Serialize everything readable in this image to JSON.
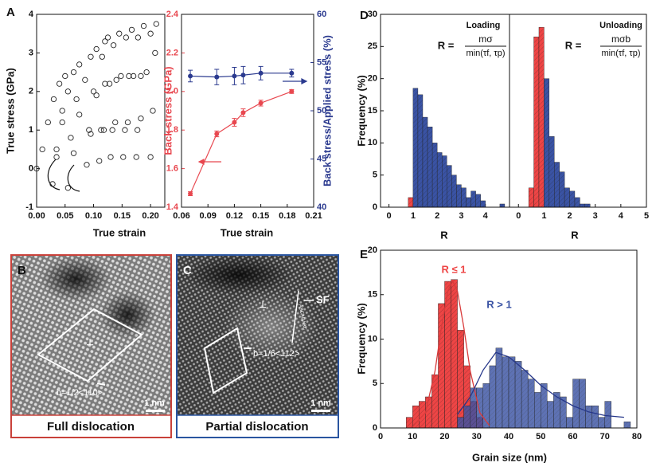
{
  "panel_labels": [
    "A",
    "B",
    "C",
    "D",
    "E"
  ],
  "micrographs": [
    {
      "dislocation_symbol": "⊥",
      "burgers_vector": "b=1/2<110>",
      "scale_bar": "1 nm",
      "caption": "Full dislocation"
    },
    {
      "dislocation_symbol": "⊥",
      "burgers_vector": "b=1/6<112>",
      "scale_bar": "1 nm",
      "caption": "Partial dislocation",
      "stacking_sequence": "ABCABABC",
      "fault_label": "SF"
    }
  ],
  "chart_data": [
    {
      "type": "scatter",
      "x_label": "True strain",
      "y_label": "True stress (GPa)",
      "xlim": [
        0,
        0.225
      ],
      "xticks": [
        {
          "value": 0,
          "label": "0.00"
        },
        0.05,
        {
          "value": 0.1,
          "label": "0.10"
        },
        0.15,
        {
          "value": 0.2,
          "label": "0.20"
        }
      ],
      "ylim": [
        -1,
        4
      ],
      "yticks": [
        -1,
        0,
        1,
        2,
        3,
        4
      ],
      "series": [
        {
          "color": "#222222",
          "x": [
            0,
            0.01,
            0.02,
            0.03,
            0.04,
            0.05,
            0.045,
            0.035,
            0.028,
            0.035,
            0.045,
            0.055,
            0.065,
            0.075,
            0.07,
            0.06,
            0.055,
            0.065,
            0.075,
            0.085,
            0.095,
            0.105,
            0.1,
            0.092,
            0.088,
            0.095,
            0.105,
            0.115,
            0.12,
            0.125,
            0.12,
            0.113,
            0.11,
            0.118,
            0.128,
            0.135,
            0.145,
            0.14,
            0.133,
            0.13,
            0.138,
            0.148,
            0.157,
            0.167,
            0.162,
            0.155,
            0.152,
            0.16,
            0.17,
            0.178,
            0.188,
            0.183,
            0.177,
            0.175,
            0.183,
            0.193,
            0.2,
            0.21,
            0.208,
            0.204,
            0.2
          ],
          "values": [
            0,
            0.5,
            1.2,
            1.8,
            2.2,
            2.4,
            1.5,
            0.5,
            -0.4,
            0.3,
            1.2,
            2.0,
            2.5,
            2.7,
            1.8,
            0.8,
            -0.5,
            0.4,
            1.4,
            2.3,
            2.9,
            3.1,
            2.0,
            1.0,
            0.1,
            0.9,
            1.9,
            2.9,
            3.3,
            3.4,
            2.2,
            1.0,
            0.2,
            1.0,
            2.2,
            3.2,
            3.5,
            2.3,
            1.0,
            0.3,
            1.2,
            2.4,
            3.4,
            3.6,
            2.4,
            1.0,
            0.3,
            1.2,
            2.4,
            3.4,
            3.7,
            2.4,
            1.0,
            0.3,
            1.3,
            2.5,
            3.5,
            3.75,
            3.0,
            1.5,
            0.3
          ]
        }
      ]
    },
    {
      "type": "line",
      "x_label": "True strain",
      "y_label": "Back stress (GPa)",
      "y2_label": "Back stress/Applied stress (%)",
      "xlim": [
        0.06,
        0.21
      ],
      "xticks": [
        0.06,
        0.09,
        0.12,
        0.15,
        0.18,
        0.21
      ],
      "ylim": [
        1.4,
        2.4
      ],
      "yticks": [
        1.4,
        1.6,
        1.8,
        {
          "value": 2,
          "label": "2.0"
        },
        2.2,
        2.4
      ],
      "y2lim": [
        40,
        60
      ],
      "y2ticks": [
        40,
        45,
        50,
        55,
        60
      ],
      "x": [
        0.07,
        0.1,
        0.12,
        0.13,
        0.15,
        0.185
      ],
      "series": [
        {
          "color": "#e8474f",
          "values": [
            1.47,
            1.78,
            1.84,
            1.89,
            1.94,
            2.0
          ],
          "errors": [
            0.01,
            0.015,
            0.02,
            0.02,
            0.015,
            0.01
          ]
        },
        {
          "color": "#2b3a8f",
          "axis": "y2",
          "values": [
            53.6,
            53.5,
            53.6,
            53.7,
            53.9,
            53.9
          ],
          "errors": [
            0.6,
            0.8,
            0.9,
            0.9,
            0.7,
            0.4
          ]
        }
      ]
    },
    {
      "type": "histogram",
      "x_label": "R",
      "y_label": "Frequency (%)",
      "annotations": {
        "mode": "Loading",
        "formula_lhs": "R =",
        "numerator": "mσ",
        "denominator": "min(τf, τp)"
      },
      "xlim": [
        -0.35,
        5
      ],
      "xticks": [
        0,
        1,
        2,
        3,
        4
      ],
      "ylim": [
        0,
        30
      ],
      "yticks": [
        0,
        5,
        10,
        15,
        20,
        25,
        30
      ],
      "bins": [
        0.8,
        1,
        1.2,
        1.4,
        1.6,
        1.8,
        2,
        2.2,
        2.4,
        2.6,
        2.8,
        3,
        3.2,
        3.4,
        3.6,
        3.8,
        4,
        4.2,
        4.4,
        4.6,
        4.8
      ],
      "series": [
        {
          "color": "#ee4545",
          "values": [
            1.5,
            0,
            0,
            0,
            0,
            0,
            0,
            0,
            0,
            0,
            0,
            0,
            0,
            0,
            0,
            0,
            0,
            0,
            0,
            0
          ]
        },
        {
          "color": "#3a53a4",
          "values": [
            0,
            18.5,
            17.5,
            14,
            12.5,
            10,
            8.5,
            8,
            6.5,
            5,
            3.5,
            3,
            1.5,
            2.5,
            2,
            1,
            0,
            0,
            0,
            0.5
          ]
        }
      ]
    },
    {
      "type": "histogram",
      "x_label": "R",
      "annotations": {
        "mode": "Unloading",
        "formula_lhs": "R =",
        "numerator": "mσb",
        "denominator": "min(τf, τp)"
      },
      "xlim": [
        -0.35,
        5
      ],
      "xticks": [
        0,
        1,
        2,
        3,
        4,
        5
      ],
      "ylim": [
        0,
        30
      ],
      "bins": [
        0.4,
        0.6,
        0.8,
        1,
        1.2,
        1.4,
        1.6,
        1.8,
        2,
        2.2,
        2.4,
        2.6,
        2.8
      ],
      "series": [
        {
          "color": "#ee4545",
          "values": [
            3,
            26.5,
            28,
            0,
            0,
            0,
            0,
            0,
            0,
            0,
            0,
            0
          ]
        },
        {
          "color": "#3a53a4",
          "values": [
            0,
            0,
            0,
            20,
            11,
            7,
            5.5,
            3,
            2.5,
            1.5,
            0.5,
            0.5
          ]
        }
      ]
    },
    {
      "type": "histogram",
      "x_label": "Grain size (nm)",
      "y_label": "Frequency (%)",
      "xlim": [
        0,
        80
      ],
      "xticks": [
        0,
        10,
        20,
        30,
        40,
        50,
        60,
        70,
        80
      ],
      "ylim": [
        0,
        20
      ],
      "yticks": [
        0,
        5,
        10,
        15,
        20
      ],
      "series": [
        {
          "name": "R ≤ 1",
          "color": "#ee4545",
          "bins": [
            8,
            10,
            12,
            14,
            16,
            18,
            20,
            22,
            24,
            26,
            28,
            30,
            32
          ],
          "values": [
            1.2,
            2.5,
            3,
            3.5,
            6,
            14,
            16.5,
            16.7,
            11,
            7,
            3,
            1.2
          ]
        },
        {
          "name": "R > 1",
          "color": "#3a53a4",
          "bins": [
            24,
            26,
            28,
            30,
            32,
            34,
            36,
            38,
            40,
            42,
            44,
            46,
            48,
            50,
            52,
            54,
            56,
            58,
            60,
            62,
            64,
            66,
            68,
            70,
            72,
            74,
            76,
            78
          ],
          "values": [
            1.2,
            2.5,
            4.5,
            4.5,
            5,
            7,
            9,
            8,
            8,
            7.5,
            6.5,
            5.5,
            4,
            5,
            3,
            4,
            3.5,
            1.2,
            5.5,
            5.5,
            2.5,
            2.5,
            1.2,
            3,
            0,
            0,
            0.7
          ]
        }
      ],
      "fits": [
        {
          "color": "#d93b3b",
          "x": [
            10,
            14,
            17,
            19,
            21,
            22.5,
            24,
            26,
            28,
            31,
            34
          ],
          "values": [
            0.13,
            1.7,
            6.4,
            11.3,
            15.4,
            16.5,
            15.4,
            11.3,
            6.4,
            1.7,
            0.27
          ]
        },
        {
          "color": "#26378a",
          "x": [
            24,
            28,
            32,
            36,
            40,
            45,
            50,
            55,
            60,
            65,
            70,
            76
          ],
          "values": [
            1.5,
            3.5,
            6.5,
            8.5,
            8,
            6.5,
            4.8,
            3.5,
            2.5,
            1.8,
            1.4,
            1.2
          ]
        }
      ]
    }
  ]
}
